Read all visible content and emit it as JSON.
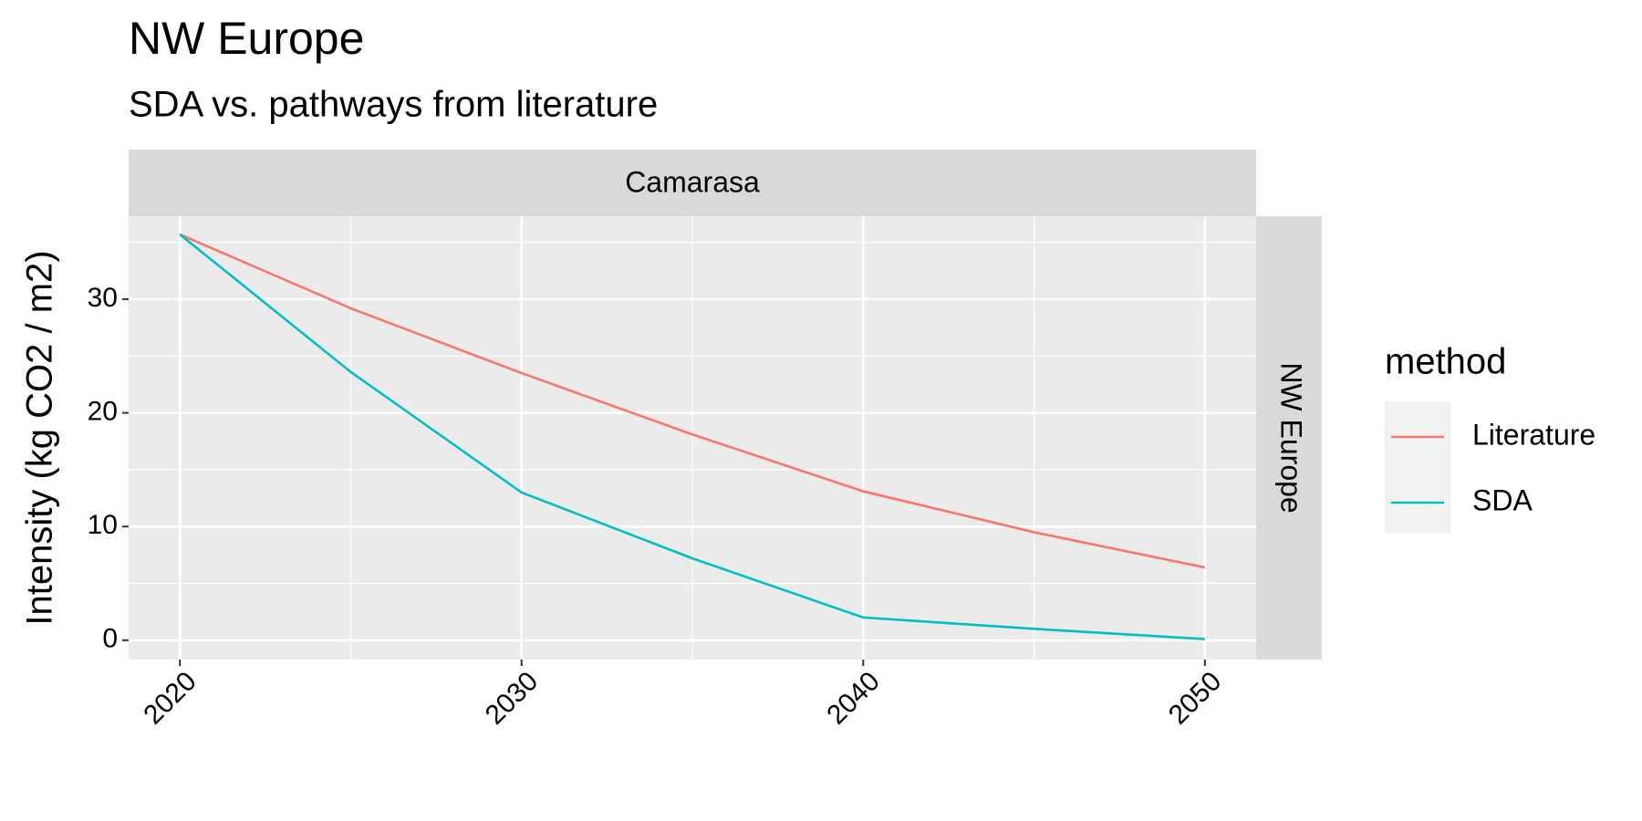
{
  "chart_data": {
    "type": "line",
    "title": "NW Europe",
    "subtitle": "SDA vs. pathways from literature",
    "facet_column": "Camarasa",
    "facet_row": "NW Europe",
    "y_label": "Intensity (kg CO2 / m2)",
    "legend_title": "method",
    "x": [
      2020,
      2025,
      2030,
      2035,
      2040,
      2045,
      2050
    ],
    "series": [
      {
        "name": "Literature",
        "color": "#f8766d",
        "values": [
          35.7,
          29.2,
          23.5,
          18.1,
          13.1,
          9.5,
          6.4
        ]
      },
      {
        "name": "SDA",
        "color": "#00bfc4",
        "values": [
          35.7,
          23.6,
          13.0,
          7.2,
          2.0,
          1.0,
          0.1
        ]
      }
    ],
    "xlim": [
      2018.5,
      2051.5
    ],
    "xticks": [
      2020,
      2030,
      2040,
      2050
    ],
    "x_minor_ticks": [
      2025,
      2035,
      2045
    ],
    "ylim": [
      -1.7,
      37.3
    ],
    "yticks": [
      0,
      10,
      20,
      30
    ],
    "y_minor_ticks": [
      5,
      15,
      25,
      35
    ],
    "grid": true,
    "legend": "right"
  }
}
